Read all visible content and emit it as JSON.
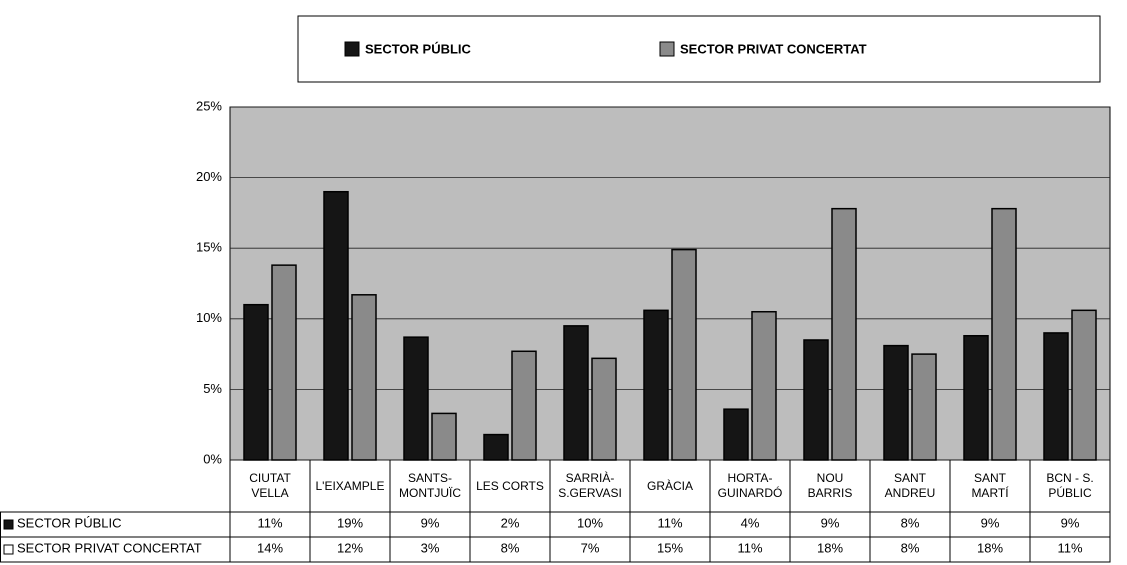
{
  "chart_data": {
    "type": "bar",
    "categories": [
      "CIUTAT\nVELLA",
      "L'EIXAMPLE",
      "SANTS-\nMONTJUÏC",
      "LES CORTS",
      "SARRIÀ-\nS.GERVASI",
      "GRÀCIA",
      "HORTA-\nGUINARDÓ",
      "NOU\nBARRIS",
      "SANT\nANDREU",
      "SANT\nMARTÍ",
      "BCN - S.\nPÚBLIC"
    ],
    "series": [
      {
        "name": "SECTOR PÚBLIC",
        "color": "#151515",
        "values": [
          11,
          19,
          8.7,
          1.8,
          9.5,
          10.6,
          3.6,
          8.5,
          8.1,
          8.8,
          9.0
        ],
        "value_labels": [
          "11%",
          "19%",
          "9%",
          "2%",
          "10%",
          "11%",
          "4%",
          "9%",
          "8%",
          "9%",
          "9%"
        ]
      },
      {
        "name": "SECTOR PRIVAT CONCERTAT",
        "color": "#8a8a8a",
        "values": [
          13.8,
          11.7,
          3.3,
          7.7,
          7.2,
          14.9,
          10.5,
          17.8,
          7.5,
          17.8,
          10.6
        ],
        "value_labels": [
          "14%",
          "12%",
          "3%",
          "8%",
          "7%",
          "15%",
          "11%",
          "18%",
          "8%",
          "18%",
          "11%"
        ]
      }
    ],
    "ylim": [
      0,
      25
    ],
    "yticks": [
      {
        "value": 0,
        "label": "0%"
      },
      {
        "value": 5,
        "label": "5%"
      },
      {
        "value": 10,
        "label": "10%"
      },
      {
        "value": 15,
        "label": "15%"
      },
      {
        "value": 20,
        "label": "20%"
      },
      {
        "value": 25,
        "label": "25%"
      }
    ],
    "grid": true,
    "legend": "top"
  }
}
